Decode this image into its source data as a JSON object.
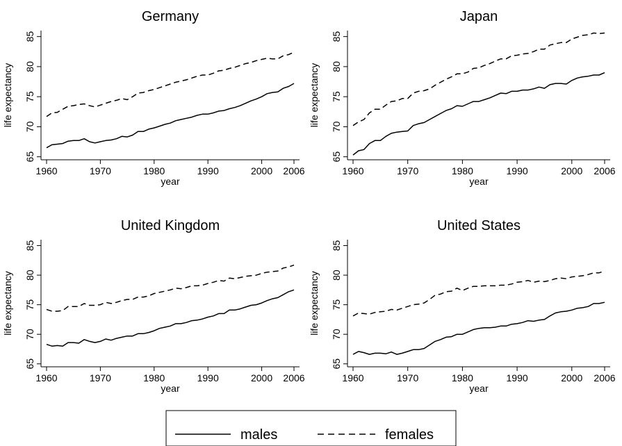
{
  "chart_data": {
    "type": "line",
    "legend": {
      "placement": "bottom",
      "entries": [
        "males",
        "females"
      ]
    },
    "panels": [
      {
        "title": "Germany",
        "xlabel": "year",
        "ylabel": "life expectancy",
        "xlim": [
          1960,
          2006
        ],
        "ylim": [
          64.5,
          86
        ],
        "xticks": [
          1960,
          1970,
          1980,
          1990,
          2000,
          2006
        ],
        "yticks": [
          65,
          70,
          75,
          80,
          85
        ],
        "grid": false,
        "x": [
          1960,
          1961,
          1962,
          1963,
          1964,
          1965,
          1966,
          1967,
          1968,
          1969,
          1970,
          1971,
          1972,
          1973,
          1974,
          1975,
          1976,
          1977,
          1978,
          1979,
          1980,
          1981,
          1982,
          1983,
          1984,
          1985,
          1986,
          1987,
          1988,
          1989,
          1990,
          1991,
          1992,
          1993,
          1994,
          1995,
          1996,
          1997,
          1998,
          1999,
          2000,
          2001,
          2002,
          2003,
          2004,
          2005,
          2006
        ],
        "series": [
          {
            "name": "males",
            "values": [
              66.5,
              67.0,
              67.1,
              67.2,
              67.6,
              67.7,
              67.7,
              68.0,
              67.5,
              67.3,
              67.5,
              67.7,
              67.8,
              68.0,
              68.4,
              68.3,
              68.6,
              69.2,
              69.2,
              69.6,
              69.8,
              70.1,
              70.4,
              70.6,
              71.0,
              71.2,
              71.4,
              71.6,
              71.9,
              72.1,
              72.1,
              72.3,
              72.6,
              72.7,
              73.0,
              73.2,
              73.5,
              73.9,
              74.3,
              74.6,
              75.0,
              75.5,
              75.7,
              75.8,
              76.4,
              76.7,
              77.2
            ]
          },
          {
            "name": "females",
            "values": [
              71.7,
              72.3,
              72.4,
              72.9,
              73.4,
              73.5,
              73.7,
              73.8,
              73.5,
              73.3,
              73.6,
              73.9,
              74.2,
              74.4,
              74.7,
              74.5,
              75.0,
              75.6,
              75.7,
              76.0,
              76.2,
              76.5,
              76.8,
              77.1,
              77.4,
              77.6,
              77.8,
              78.1,
              78.4,
              78.6,
              78.6,
              78.9,
              79.3,
              79.4,
              79.7,
              79.9,
              80.2,
              80.5,
              80.7,
              81.0,
              81.2,
              81.4,
              81.3,
              81.3,
              81.8,
              82.0,
              82.4
            ]
          }
        ]
      },
      {
        "title": "Japan",
        "xlabel": "year",
        "ylabel": "life expectancy",
        "xlim": [
          1960,
          2006
        ],
        "ylim": [
          64.5,
          86
        ],
        "xticks": [
          1960,
          1970,
          1980,
          1990,
          2000,
          2006
        ],
        "yticks": [
          65,
          70,
          75,
          80,
          85
        ],
        "grid": false,
        "x": [
          1960,
          1961,
          1962,
          1963,
          1964,
          1965,
          1966,
          1967,
          1968,
          1969,
          1970,
          1971,
          1972,
          1973,
          1974,
          1975,
          1976,
          1977,
          1978,
          1979,
          1980,
          1981,
          1982,
          1983,
          1984,
          1985,
          1986,
          1987,
          1988,
          1989,
          1990,
          1991,
          1992,
          1993,
          1994,
          1995,
          1996,
          1997,
          1998,
          1999,
          2000,
          2001,
          2002,
          2003,
          2004,
          2005,
          2006
        ],
        "series": [
          {
            "name": "males",
            "values": [
              65.3,
              66.0,
              66.2,
              67.2,
              67.7,
              67.7,
              68.4,
              68.9,
              69.1,
              69.2,
              69.3,
              70.2,
              70.5,
              70.7,
              71.2,
              71.7,
              72.2,
              72.7,
              73.0,
              73.5,
              73.4,
              73.8,
              74.2,
              74.2,
              74.5,
              74.8,
              75.2,
              75.6,
              75.5,
              75.9,
              75.9,
              76.1,
              76.1,
              76.3,
              76.6,
              76.4,
              77.0,
              77.2,
              77.2,
              77.1,
              77.7,
              78.1,
              78.3,
              78.4,
              78.6,
              78.6,
              79.0
            ]
          },
          {
            "name": "females",
            "values": [
              70.2,
              70.8,
              71.2,
              72.3,
              72.9,
              72.9,
              73.6,
              74.2,
              74.3,
              74.7,
              74.7,
              75.6,
              75.9,
              76.0,
              76.3,
              76.9,
              77.4,
              77.9,
              78.3,
              78.8,
              78.8,
              79.1,
              79.7,
              79.8,
              80.2,
              80.5,
              80.9,
              81.3,
              81.3,
              81.8,
              81.9,
              82.1,
              82.2,
              82.5,
              82.9,
              82.9,
              83.6,
              83.8,
              84.0,
              84.0,
              84.6,
              84.9,
              85.2,
              85.3,
              85.6,
              85.5,
              85.6
            ]
          }
        ]
      },
      {
        "title": "United Kingdom",
        "xlabel": "year",
        "ylabel": "life expectancy",
        "xlim": [
          1960,
          2006
        ],
        "ylim": [
          64.5,
          86
        ],
        "xticks": [
          1960,
          1970,
          1980,
          1990,
          2000,
          2006
        ],
        "yticks": [
          65,
          70,
          75,
          80,
          85
        ],
        "grid": false,
        "x": [
          1960,
          1961,
          1962,
          1963,
          1964,
          1965,
          1966,
          1967,
          1968,
          1969,
          1970,
          1971,
          1972,
          1973,
          1974,
          1975,
          1976,
          1977,
          1978,
          1979,
          1980,
          1981,
          1982,
          1983,
          1984,
          1985,
          1986,
          1987,
          1988,
          1989,
          1990,
          1991,
          1992,
          1993,
          1994,
          1995,
          1996,
          1997,
          1998,
          1999,
          2000,
          2001,
          2002,
          2003,
          2004,
          2005,
          2006
        ],
        "series": [
          {
            "name": "males",
            "values": [
              68.3,
              68.0,
              68.1,
              68.0,
              68.6,
              68.6,
              68.5,
              69.1,
              68.8,
              68.6,
              68.8,
              69.2,
              69.0,
              69.3,
              69.5,
              69.7,
              69.7,
              70.1,
              70.1,
              70.3,
              70.6,
              71.0,
              71.2,
              71.4,
              71.8,
              71.8,
              72.0,
              72.3,
              72.4,
              72.6,
              72.9,
              73.1,
              73.5,
              73.5,
              74.1,
              74.1,
              74.3,
              74.6,
              74.9,
              75.0,
              75.3,
              75.7,
              76.0,
              76.2,
              76.7,
              77.2,
              77.5
            ]
          },
          {
            "name": "females",
            "values": [
              74.2,
              73.9,
              73.9,
              74.0,
              74.7,
              74.7,
              74.7,
              75.2,
              74.9,
              74.9,
              75.0,
              75.4,
              75.2,
              75.4,
              75.7,
              75.9,
              75.9,
              76.3,
              76.3,
              76.5,
              76.9,
              77.1,
              77.3,
              77.5,
              77.8,
              77.7,
              77.9,
              78.2,
              78.2,
              78.3,
              78.6,
              78.8,
              79.1,
              79.0,
              79.5,
              79.4,
              79.6,
              79.8,
              79.9,
              80.0,
              80.3,
              80.5,
              80.6,
              80.7,
              81.2,
              81.4,
              81.7
            ]
          }
        ]
      },
      {
        "title": "United States",
        "xlabel": "year",
        "ylabel": "life expectancy",
        "xlim": [
          1960,
          2006
        ],
        "ylim": [
          64.5,
          86
        ],
        "xticks": [
          1960,
          1970,
          1980,
          1990,
          2000,
          2006
        ],
        "yticks": [
          65,
          70,
          75,
          80,
          85
        ],
        "grid": false,
        "x": [
          1960,
          1961,
          1962,
          1963,
          1964,
          1965,
          1966,
          1967,
          1968,
          1969,
          1970,
          1971,
          1972,
          1973,
          1974,
          1975,
          1976,
          1977,
          1978,
          1979,
          1980,
          1981,
          1982,
          1983,
          1984,
          1985,
          1986,
          1987,
          1988,
          1989,
          1990,
          1991,
          1992,
          1993,
          1994,
          1995,
          1996,
          1997,
          1998,
          1999,
          2000,
          2001,
          2002,
          2003,
          2004,
          2005,
          2006
        ],
        "series": [
          {
            "name": "males",
            "values": [
              66.6,
              67.1,
              66.9,
              66.6,
              66.8,
              66.8,
              66.7,
              67.0,
              66.6,
              66.8,
              67.1,
              67.4,
              67.4,
              67.6,
              68.2,
              68.8,
              69.1,
              69.5,
              69.6,
              70.0,
              70.0,
              70.4,
              70.8,
              71.0,
              71.1,
              71.1,
              71.2,
              71.4,
              71.4,
              71.7,
              71.8,
              72.0,
              72.3,
              72.2,
              72.4,
              72.5,
              73.1,
              73.6,
              73.8,
              73.9,
              74.1,
              74.4,
              74.5,
              74.7,
              75.2,
              75.2,
              75.4
            ]
          },
          {
            "name": "females",
            "values": [
              73.1,
              73.6,
              73.5,
              73.4,
              73.7,
              73.8,
              73.9,
              74.2,
              74.1,
              74.4,
              74.7,
              75.0,
              75.1,
              75.3,
              75.9,
              76.6,
              76.8,
              77.2,
              77.3,
              77.8,
              77.4,
              77.8,
              78.1,
              78.1,
              78.2,
              78.2,
              78.2,
              78.3,
              78.3,
              78.5,
              78.8,
              78.9,
              79.1,
              78.8,
              79.0,
              78.9,
              79.1,
              79.4,
              79.5,
              79.4,
              79.7,
              79.8,
              79.9,
              80.1,
              80.4,
              80.4,
              80.7
            ]
          }
        ]
      }
    ]
  }
}
